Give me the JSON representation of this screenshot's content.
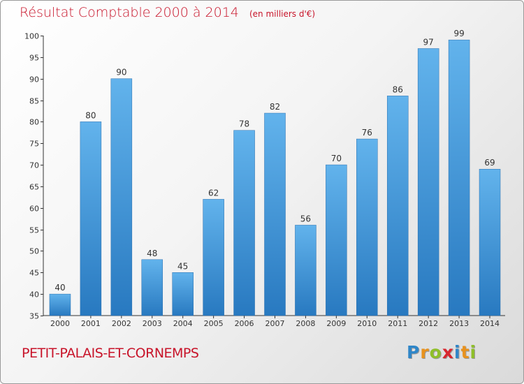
{
  "header": {
    "title": "Résultat Comptable 2000 à 2014",
    "subtitle": "(en milliers d'€)"
  },
  "footer": {
    "commune": "PETIT-PALAIS-ET-CORNEMPS",
    "logo_text": "Proxiti"
  },
  "colors": {
    "accent_red": "#c8142a",
    "bar_light": "#5fb0ea",
    "bar_dark": "#2a7fc3"
  },
  "chart_data": {
    "type": "bar",
    "categories": [
      "2000",
      "2001",
      "2002",
      "2003",
      "2004",
      "2005",
      "2006",
      "2007",
      "2008",
      "2009",
      "2010",
      "2011",
      "2012",
      "2013",
      "2014"
    ],
    "values": [
      40,
      80,
      90,
      48,
      45,
      62,
      78,
      82,
      56,
      70,
      76,
      86,
      97,
      99,
      69
    ],
    "title": "Résultat Comptable 2000 à 2014",
    "xlabel": "",
    "ylabel": "",
    "ylim": [
      35,
      100
    ],
    "yticks": [
      35,
      40,
      45,
      50,
      55,
      60,
      65,
      70,
      75,
      80,
      85,
      90,
      95,
      100
    ],
    "grid": false,
    "data_labels": true
  }
}
